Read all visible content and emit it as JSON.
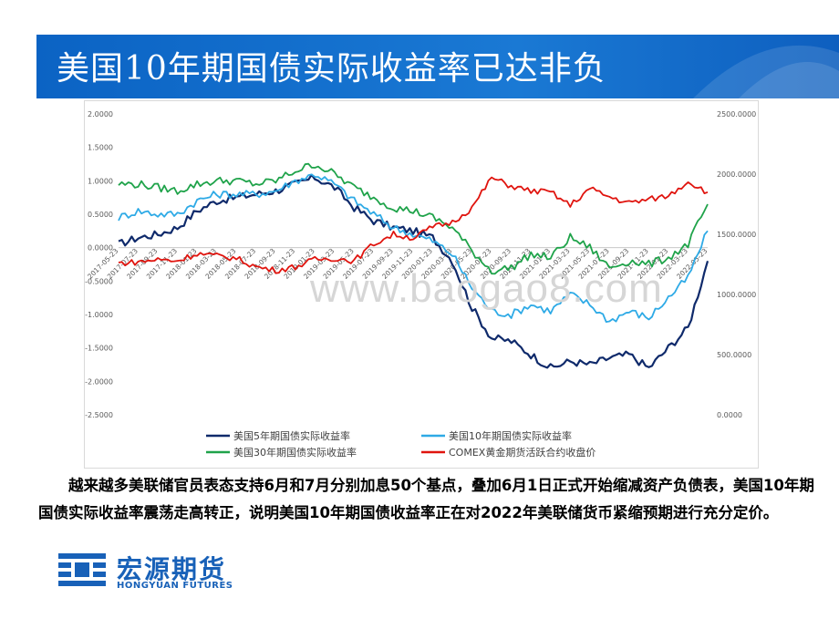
{
  "title": "美国10年期国债实际收益率已达非负",
  "watermark": "www.baogao8.com",
  "paragraph": "越来越多美联储官员表态支持6月和7月分别加息50个基点，叠加6月1日正式开始缩减资产负债表，美国10年期国债实际收益率震荡走高转正，说明美国10年期国债收益率正在对2022年美联储货币紧缩预期进行充分定价。",
  "logo": {
    "cn": "宏源期货",
    "en": "HONGYUAN FUTURES"
  },
  "colors": {
    "banner": "#0b63c4",
    "s5": "#0f2a6b",
    "s10": "#2eaae6",
    "s30": "#1fa34a",
    "gold": "#e0140e"
  },
  "chart_data": {
    "type": "line",
    "left_axis": {
      "ylim": [
        -2.5,
        2.0
      ],
      "ticks": [
        "2.0000",
        "1.5000",
        "1.0000",
        "0.5000",
        "0.0000",
        "-0.5000",
        "-1.0000",
        "-1.5000",
        "-2.0000",
        "-2.5000"
      ]
    },
    "right_axis": {
      "ylim": [
        0,
        2500
      ],
      "ticks": [
        "2500.0000",
        "2000.0000",
        "1500.0000",
        "1000.0000",
        "500.0000",
        "0.0000"
      ]
    },
    "x_labels": [
      "2017-05-23",
      "2017-07-23",
      "2017-09-23",
      "2017-11-23",
      "2018-01-23",
      "2018-03-23",
      "2018-05-23",
      "2018-07-23",
      "2018-09-23",
      "2018-11-23",
      "2019-01-23",
      "2019-03-23",
      "2019-05-23",
      "2019-07-23",
      "2019-09-23",
      "2019-11-23",
      "2020-01-23",
      "2020-03-23",
      "2020-05-23",
      "2020-07-23",
      "2020-09-23",
      "2020-11-23",
      "2021-01-23",
      "2021-03-23",
      "2021-05-23",
      "2021-07-23",
      "2021-09-23",
      "2021-11-23",
      "2022-01-23",
      "2022-03-23",
      "2022-05-23"
    ],
    "series": [
      {
        "name": "美国5年期国债实际收益率",
        "axis": "left",
        "key": "s5",
        "values": [
          0.05,
          0.15,
          0.2,
          0.3,
          0.55,
          0.7,
          0.75,
          0.8,
          0.85,
          0.95,
          1.05,
          0.9,
          0.6,
          0.4,
          0.3,
          0.25,
          0.15,
          -0.2,
          -0.9,
          -1.35,
          -1.4,
          -1.6,
          -1.8,
          -1.7,
          -1.75,
          -1.65,
          -1.6,
          -1.8,
          -1.5,
          -1.2,
          -0.2
        ]
      },
      {
        "name": "美国10年期国债实际收益率",
        "axis": "left",
        "key": "s10",
        "values": [
          0.45,
          0.55,
          0.5,
          0.5,
          0.7,
          0.8,
          0.8,
          0.8,
          0.85,
          1.0,
          1.1,
          0.95,
          0.7,
          0.5,
          0.3,
          0.2,
          0.1,
          -0.1,
          -0.6,
          -0.95,
          -1.0,
          -0.85,
          -0.95,
          -0.7,
          -0.85,
          -1.1,
          -0.95,
          -1.05,
          -0.75,
          -0.45,
          0.25
        ]
      },
      {
        "name": "美国30年期国债实际收益率",
        "axis": "left",
        "key": "s30",
        "values": [
          0.95,
          0.95,
          0.9,
          0.85,
          0.95,
          1.0,
          1.0,
          0.95,
          1.0,
          1.15,
          1.25,
          1.1,
          0.9,
          0.75,
          0.6,
          0.55,
          0.45,
          0.3,
          -0.05,
          -0.35,
          -0.3,
          -0.1,
          -0.15,
          0.15,
          0.0,
          -0.3,
          -0.2,
          -0.25,
          -0.15,
          0.05,
          0.65
        ]
      },
      {
        "name": "COMEX黄金期货活跃合约收盘价",
        "axis": "right",
        "key": "gold",
        "values": [
          1260,
          1270,
          1290,
          1280,
          1340,
          1320,
          1300,
          1230,
          1200,
          1230,
          1290,
          1300,
          1280,
          1420,
          1500,
          1470,
          1560,
          1600,
          1720,
          1970,
          1900,
          1860,
          1850,
          1740,
          1880,
          1810,
          1760,
          1790,
          1820,
          1940,
          1850
        ]
      }
    ]
  }
}
